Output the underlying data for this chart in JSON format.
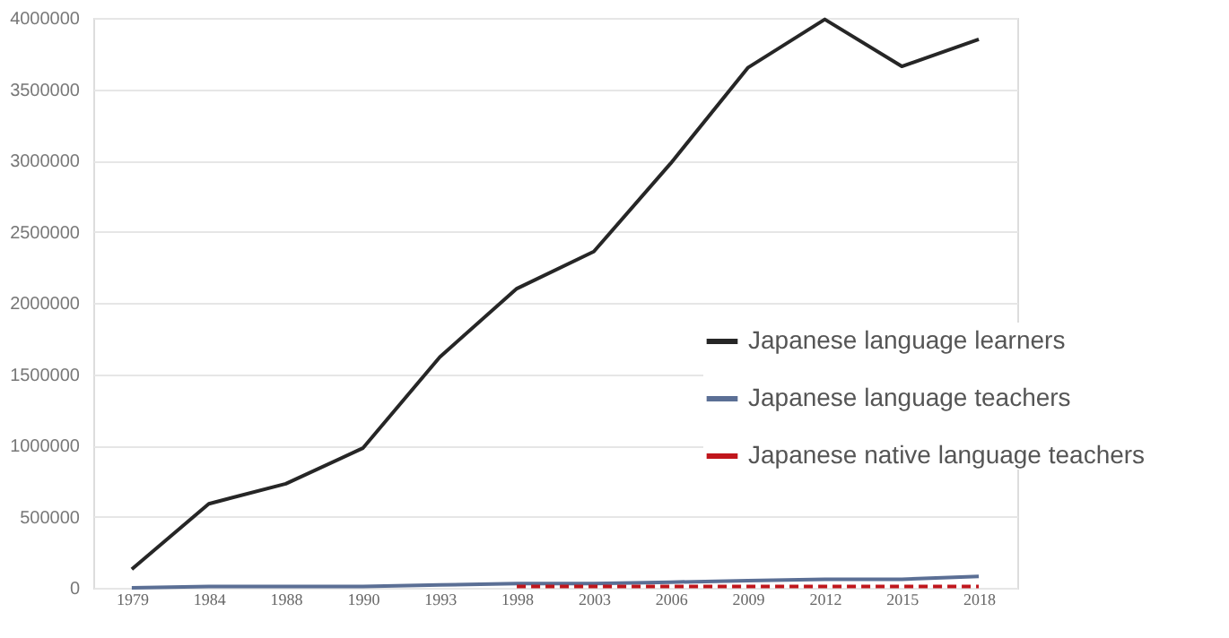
{
  "chart_data": {
    "type": "line",
    "categories": [
      "1979",
      "1984",
      "1988",
      "1990",
      "1993",
      "1998",
      "2003",
      "2006",
      "2009",
      "2012",
      "2015",
      "2018"
    ],
    "ylim": [
      0,
      4000000
    ],
    "yticks": [
      0,
      500000,
      1000000,
      1500000,
      2000000,
      2500000,
      3000000,
      3500000,
      4000000
    ],
    "grid": "y",
    "legend": "right",
    "series": [
      {
        "name": "Japanese language learners",
        "color": "#262626",
        "line_style": "solid",
        "values": [
          130000,
          590000,
          730000,
          980000,
          1620000,
          2100000,
          2360000,
          2980000,
          3650000,
          3990000,
          3660000,
          3850000
        ]
      },
      {
        "name": "Japanese language teachers",
        "color": "#5b6f95",
        "line_style": "solid",
        "values": [
          0,
          10000,
          10000,
          10000,
          20000,
          30000,
          30000,
          40000,
          50000,
          60000,
          60000,
          80000
        ]
      },
      {
        "name": "Japanese native language teachers",
        "color": "#c0161c",
        "line_style": "dashed",
        "values": [
          null,
          null,
          null,
          null,
          null,
          10000,
          10000,
          10000,
          10000,
          10000,
          10000,
          10000
        ]
      }
    ]
  }
}
